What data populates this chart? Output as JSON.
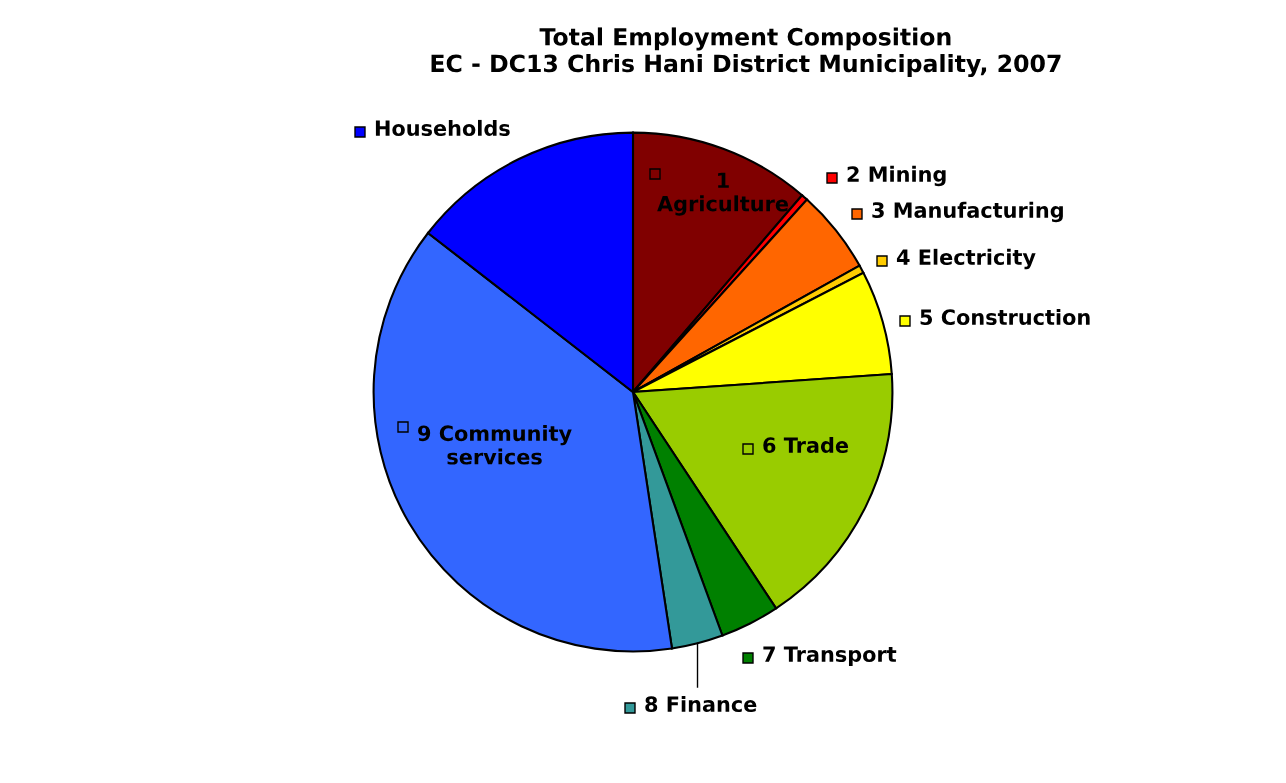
{
  "chart_data": {
    "type": "pie",
    "title": "Total Employment Composition\nEC - DC13 Chris Hani District Municipality, 2007",
    "categories": [
      "1\nAgriculture",
      "2 Mining",
      "3 Manufacturing",
      "4 Electricity",
      "5 Construction",
      "6 Trade",
      "7 Transport",
      "8 Finance",
      "9 Community\nservices",
      "Households"
    ],
    "values": [
      11.3,
      0.4,
      5.2,
      0.5,
      6.5,
      16.8,
      3.7,
      3.2,
      37.9,
      14.5
    ],
    "legend": "right",
    "colors": [
      "#800000",
      "#ff0000",
      "#ff6600",
      "#ffcc00",
      "#ffff00",
      "#99cc00",
      "#008000",
      "#339999",
      "#3366ff",
      "#0000ff"
    ]
  }
}
